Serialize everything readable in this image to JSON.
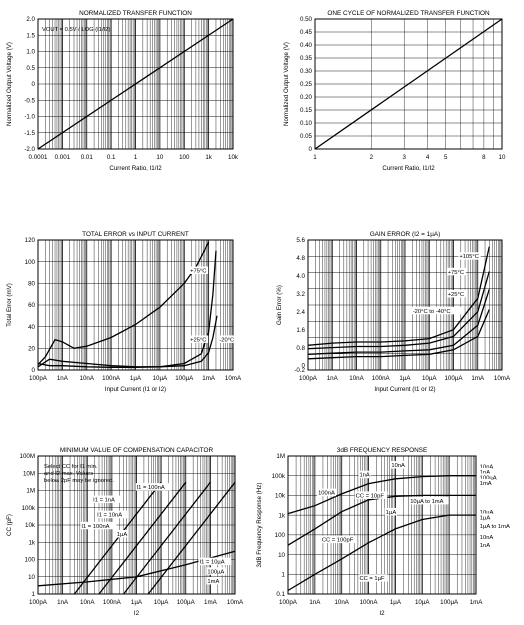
{
  "chart_data": [
    {
      "type": "line",
      "title": "NORMALIZED TRANSFER FUNCTION",
      "xlabel": "Current Ratio, I1/I2",
      "ylabel": "Normalized Output Voltage (V)",
      "xscale": "log",
      "xlim": [
        0.0001,
        10000
      ],
      "ylim": [
        -2.0,
        2.0
      ],
      "x_tick_labels": [
        "0.0001",
        "0.001",
        "0.01",
        "0.1",
        "1",
        "10",
        "100",
        "1k",
        "10k"
      ],
      "y_tick_labels": [
        "-2.0",
        "-1.5",
        "-1.0",
        "-0.5",
        "0",
        "0.5",
        "1.0",
        "1.5",
        "2.0"
      ],
      "annotations": [
        "VOUT = 0.5V / LOG (I1/I2)"
      ],
      "grid": true,
      "series": [
        {
          "x": [
            0.0001,
            10000
          ],
          "y": [
            -2.0,
            2.0
          ]
        }
      ]
    },
    {
      "type": "line",
      "title": "ONE CYCLE OF NORMALIZED TRANSFER FUNCTION",
      "xlabel": "Current Ratio, I1/I2",
      "ylabel": "Normalized Output Voltage (V)",
      "xscale": "log",
      "xlim": [
        1,
        10
      ],
      "ylim": [
        0,
        0.5
      ],
      "x_tick_labels": [
        "1",
        "2",
        "3",
        "4",
        "5",
        "8",
        "10"
      ],
      "y_tick_labels": [
        "0",
        "0.05",
        "0.10",
        "0.15",
        "0.20",
        "0.25",
        "0.30",
        "0.35",
        "0.40",
        "0.45",
        "0.50"
      ],
      "grid": true,
      "series": [
        {
          "x": [
            1,
            10
          ],
          "y": [
            0,
            0.5
          ]
        }
      ]
    },
    {
      "type": "line",
      "title": "TOTAL ERROR vs INPUT CURRENT",
      "xlabel": "Input Current (I1 or I2)",
      "ylabel": "Total Error (mV)",
      "xscale": "log",
      "xlim": [
        1e-10,
        0.01
      ],
      "ylim": [
        0,
        120
      ],
      "x_tick_labels": [
        "100pA",
        "1nA",
        "10nA",
        "100nA",
        "1µA",
        "10µA",
        "100µA",
        "1mA",
        "10mA"
      ],
      "y_tick_labels": [
        "0",
        "20",
        "40",
        "60",
        "80",
        "100",
        "120"
      ],
      "annotations": [
        "+75°C",
        "+25°C",
        "-20°C"
      ],
      "grid": true,
      "series": [
        {
          "name": "+75°C",
          "x": [
            1e-10,
            2e-10,
            5e-10,
            1e-09,
            3e-09,
            1e-08,
            1e-07,
            1e-06,
            1e-05,
            0.0001,
            0.0003,
            0.0006,
            0.001
          ],
          "y": [
            5,
            12,
            28,
            26,
            20,
            22,
            30,
            42,
            58,
            80,
            95,
            108,
            118
          ]
        },
        {
          "name": "+25°C",
          "x": [
            1e-10,
            3e-10,
            1e-09,
            1e-08,
            1e-07,
            1e-06,
            1e-05,
            0.0001,
            0.0005,
            0.001,
            0.0015,
            0.002
          ],
          "y": [
            6,
            4,
            4,
            3,
            2.5,
            2.5,
            3,
            6,
            15,
            35,
            70,
            110
          ]
        },
        {
          "name": "-20°C",
          "x": [
            1e-10,
            3e-10,
            1e-09,
            1e-08,
            1e-07,
            1e-06,
            1e-05,
            0.0001,
            0.0005,
            0.001,
            0.0015,
            0.0022
          ],
          "y": [
            3,
            10,
            8,
            6,
            4,
            3,
            3,
            4,
            8,
            16,
            30,
            50
          ]
        }
      ]
    },
    {
      "type": "line",
      "title": "GAIN ERROR (I2 = 1µA)",
      "xlabel": "Input Current (I1 or I2)",
      "ylabel": "Gain Error (%)",
      "xscale": "log",
      "xlim": [
        1e-10,
        0.01
      ],
      "ylim": [
        -0.2,
        5.6
      ],
      "x_tick_labels": [
        "100pA",
        "1nA",
        "10nA",
        "100nA",
        "1µA",
        "10µA",
        "100µA",
        "1mA",
        "10mA"
      ],
      "y_tick_labels": [
        "-0.2",
        "0",
        "0.8",
        "1.6",
        "2.4",
        "3.2",
        "4.0",
        "4.8",
        "5.6"
      ],
      "annotations": [
        "+105°C",
        "+75°C",
        "+25°C",
        "-20°C to -40°C"
      ],
      "grid": true,
      "series": [
        {
          "name": "+105°C",
          "x": [
            1e-10,
            1e-09,
            1e-08,
            1e-07,
            1e-06,
            1e-05,
            0.0001,
            0.001,
            0.003
          ],
          "y": [
            0.9,
            1.0,
            1.05,
            1.05,
            1.1,
            1.2,
            1.6,
            3.0,
            5.3
          ]
        },
        {
          "name": "+75°C",
          "x": [
            1e-10,
            1e-09,
            1e-08,
            1e-07,
            1e-06,
            1e-05,
            0.0001,
            0.001,
            0.003
          ],
          "y": [
            0.75,
            0.8,
            0.85,
            0.85,
            0.9,
            1.0,
            1.3,
            2.4,
            4.2
          ]
        },
        {
          "name": "+25°C",
          "x": [
            1e-10,
            1e-09,
            1e-08,
            1e-07,
            1e-06,
            1e-05,
            0.0001,
            0.001,
            0.003
          ],
          "y": [
            0.5,
            0.55,
            0.6,
            0.6,
            0.65,
            0.7,
            0.9,
            1.8,
            3.4
          ]
        },
        {
          "name": "-20°C to -40°C",
          "x": [
            1e-10,
            1e-09,
            1e-08,
            1e-07,
            1e-06,
            1e-05,
            0.0001,
            0.001,
            0.003
          ],
          "y": [
            0.3,
            0.35,
            0.4,
            0.4,
            0.45,
            0.5,
            0.7,
            1.3,
            2.5
          ]
        }
      ]
    },
    {
      "type": "line",
      "title": "MINIMUM VALUE OF COMPENSATION CAPACITOR",
      "xlabel": "I2",
      "ylabel": "CC (pF)",
      "xscale": "log",
      "yscale": "log",
      "xlim": [
        1e-10,
        0.01
      ],
      "ylim": [
        1,
        100000000
      ],
      "x_tick_labels": [
        "100pA",
        "1nA",
        "10nA",
        "100nA",
        "1µA",
        "10µA",
        "100µA",
        "1mA",
        "10mA"
      ],
      "y_tick_labels": [
        "1",
        "10",
        "100",
        "1k",
        "10k",
        "100k",
        "1M",
        "10M",
        "100M"
      ],
      "annotations": [
        "Select CC for I1 min. and I2 max. Values below 2pF may be ignored.",
        "I1 = 100nA",
        "I1 = 1nA",
        "I1 = 10nA",
        "I1 = 100nA",
        "1µA",
        "I1 = 10µA",
        "100µA",
        "1mA"
      ],
      "grid": true,
      "series": [
        {
          "name": "I1 = 1nA",
          "x": [
            3e-09,
            1e-05
          ],
          "y": [
            1,
            3000000
          ]
        },
        {
          "name": "I1 = 10nA",
          "x": [
            3e-08,
            0.0001
          ],
          "y": [
            1,
            3000000
          ]
        },
        {
          "name": "I1 = 100nA",
          "x": [
            3e-07,
            0.001
          ],
          "y": [
            1,
            3000000
          ]
        },
        {
          "name": "1µA",
          "x": [
            3e-06,
            0.01
          ],
          "y": [
            1,
            3000000
          ]
        },
        {
          "name": "I1 = 10µA",
          "x": [
            1e-10,
            1e-08,
            1e-06,
            0.0001,
            0.01
          ],
          "y": [
            3,
            5,
            10,
            50,
            300
          ]
        }
      ]
    },
    {
      "type": "line",
      "title": "3dB FREQUENCY RESPONSE",
      "xlabel": "I2",
      "ylabel": "3dB Frequency Response (Hz)",
      "xscale": "log",
      "yscale": "log",
      "xlim": [
        1e-10,
        0.001
      ],
      "ylim": [
        0.1,
        1000000
      ],
      "x_tick_labels": [
        "100pA",
        "1nA",
        "10nA",
        "100nA",
        "1µA",
        "10µA",
        "100µA",
        "1mA"
      ],
      "y_tick_labels": [
        "0.1",
        "1",
        "10",
        "100",
        "1k",
        "10k",
        "100k",
        "1M"
      ],
      "annotations": [
        "10nA",
        "1nA",
        "CC = 10pF",
        "100nA",
        "10µA to 1mA",
        "1µA",
        "CC = 100pF",
        "CC = 1µF",
        "10nA",
        "1nA",
        "100µA",
        "1mA",
        "10µA",
        "1µA",
        "1µA to 1mA",
        "10nA",
        "1nA"
      ],
      "grid": true,
      "series": [
        {
          "name": "CC = 10pF",
          "x": [
            1e-10,
            1e-09,
            1e-08,
            1e-07,
            1e-06,
            1e-05,
            0.0001,
            0.001
          ],
          "y": [
            1200,
            3000,
            12000,
            40000,
            70000,
            90000,
            100000,
            100000
          ]
        },
        {
          "name": "CC = 100pF",
          "x": [
            1e-10,
            1e-09,
            1e-08,
            1e-07,
            1e-06,
            1e-05,
            0.0001,
            0.001
          ],
          "y": [
            30,
            200,
            1500,
            6000,
            9000,
            10000,
            10000,
            10000
          ]
        },
        {
          "name": "CC = 1µF",
          "x": [
            1e-10,
            1e-09,
            1e-08,
            1e-07,
            1e-06,
            1e-05,
            0.0001,
            0.001
          ],
          "y": [
            0.15,
            1,
            6,
            40,
            200,
            600,
            1000,
            1000
          ]
        }
      ]
    }
  ]
}
